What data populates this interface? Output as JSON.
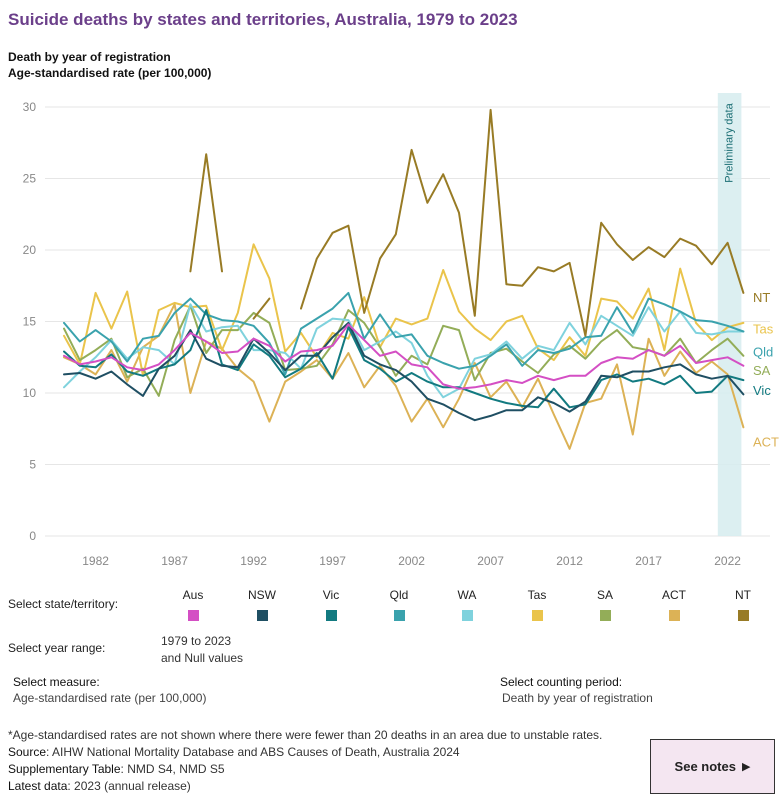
{
  "header": {
    "title": "Suicide deaths by states and territories, Australia, 1979 to 2023",
    "subtitle_1": "Death by year of registration",
    "subtitle_2": "Age-standardised rate (per 100,000)"
  },
  "chart_data": {
    "type": "line",
    "years": [
      1980,
      1981,
      1982,
      1983,
      1984,
      1985,
      1986,
      1987,
      1988,
      1989,
      1990,
      1991,
      1992,
      1993,
      1994,
      1995,
      1996,
      1997,
      1998,
      1999,
      2000,
      2001,
      2002,
      2003,
      2004,
      2005,
      2006,
      2007,
      2008,
      2009,
      2010,
      2011,
      2012,
      2013,
      2014,
      2015,
      2016,
      2017,
      2018,
      2019,
      2020,
      2021,
      2022,
      2023
    ],
    "x_ticks": [
      1982,
      1987,
      1992,
      1997,
      2002,
      2007,
      2012,
      2017,
      2022
    ],
    "y_ticks": [
      0,
      5,
      10,
      15,
      20,
      25,
      30
    ],
    "ylim": [
      0,
      31
    ],
    "annotation": "Preliminary data",
    "preliminary_range": [
      2021,
      2023
    ],
    "series": [
      {
        "name": "Aus",
        "color": "#d44fc4",
        "values": [
          12.6,
          12.0,
          12.2,
          12.5,
          11.8,
          11.6,
          12.0,
          13.0,
          14.2,
          13.6,
          12.8,
          12.9,
          13.8,
          13.3,
          12.2,
          12.9,
          13.0,
          13.3,
          14.8,
          13.7,
          12.6,
          12.9,
          12.0,
          11.8,
          10.6,
          10.3,
          10.4,
          10.6,
          10.9,
          10.7,
          11.2,
          10.9,
          11.2,
          11.2,
          12.1,
          12.5,
          12.4,
          13.0,
          12.6,
          13.3,
          12.1,
          12.3,
          12.5,
          11.9
        ]
      },
      {
        "name": "NSW",
        "color": "#1f4f63",
        "values": [
          11.3,
          11.4,
          11.0,
          11.5,
          10.6,
          9.8,
          11.7,
          12.6,
          14.4,
          12.4,
          11.9,
          11.8,
          13.8,
          12.8,
          11.6,
          12.6,
          12.6,
          13.9,
          14.9,
          12.6,
          12.0,
          11.6,
          10.8,
          9.6,
          9.2,
          8.6,
          8.1,
          8.4,
          8.8,
          8.8,
          9.7,
          9.3,
          8.7,
          9.4,
          11.2,
          11.1,
          11.5,
          11.5,
          11.8,
          12.0,
          11.3,
          11.0,
          11.2,
          9.9
        ]
      },
      {
        "name": "Vic",
        "color": "#127a80",
        "values": [
          12.9,
          11.9,
          11.8,
          12.7,
          11.5,
          11.2,
          11.7,
          12.0,
          13.0,
          15.8,
          12.0,
          11.6,
          13.4,
          12.6,
          11.1,
          11.7,
          12.8,
          11.0,
          14.6,
          12.3,
          11.7,
          10.8,
          11.4,
          10.8,
          10.4,
          10.4,
          10.0,
          9.6,
          9.3,
          9.1,
          9.0,
          10.3,
          9.0,
          9.2,
          10.9,
          11.3,
          10.8,
          11.0,
          10.6,
          11.2,
          10.0,
          10.1,
          11.2,
          10.9
        ]
      },
      {
        "name": "Qld",
        "color": "#3aa2ad",
        "values": [
          14.9,
          13.6,
          14.4,
          13.6,
          12.2,
          13.8,
          14.0,
          15.6,
          16.6,
          15.5,
          15.1,
          15.0,
          14.7,
          13.5,
          11.3,
          14.5,
          15.2,
          15.9,
          17.0,
          13.8,
          15.5,
          13.9,
          14.1,
          12.6,
          12.1,
          11.7,
          11.9,
          12.6,
          13.4,
          11.9,
          13.0,
          12.8,
          13.1,
          13.9,
          14.0,
          16.0,
          14.2,
          16.6,
          16.2,
          15.7,
          15.1,
          15.0,
          14.7,
          14.3
        ]
      },
      {
        "name": "WA",
        "color": "#7fd2dd",
        "values": [
          10.4,
          11.5,
          12.5,
          13.7,
          12.4,
          13.2,
          13.0,
          12.0,
          16.2,
          14.3,
          14.6,
          14.7,
          13.0,
          13.0,
          12.8,
          11.7,
          14.5,
          15.2,
          15.1,
          13.0,
          13.6,
          14.3,
          13.5,
          11.2,
          9.7,
          10.3,
          12.4,
          12.7,
          13.6,
          12.4,
          13.3,
          13.0,
          14.9,
          13.4,
          15.4,
          14.7,
          14.0,
          16.0,
          14.3,
          15.7,
          14.2,
          14.1,
          14.3,
          14.3
        ]
      },
      {
        "name": "Tas",
        "color": "#eac44b",
        "values": [
          14.0,
          12.0,
          17.0,
          14.5,
          17.1,
          11.2,
          15.8,
          16.3,
          16.0,
          16.1,
          13.0,
          15.6,
          20.4,
          18.0,
          12.9,
          14.2,
          12.5,
          14.2,
          13.8,
          16.7,
          13.2,
          15.2,
          14.8,
          15.2,
          18.6,
          15.7,
          14.5,
          13.7,
          15.0,
          15.4,
          13.1,
          12.3,
          13.9,
          12.6,
          16.6,
          16.4,
          15.2,
          17.3,
          13.0,
          18.7,
          14.9,
          13.7,
          14.6,
          14.9
        ]
      },
      {
        "name": "SA",
        "color": "#93ad58",
        "values": [
          14.5,
          12.3,
          13.0,
          13.8,
          11.1,
          11.7,
          9.8,
          13.7,
          16.1,
          12.8,
          14.4,
          14.4,
          15.6,
          14.9,
          11.6,
          11.7,
          11.9,
          13.4,
          15.8,
          14.9,
          13.2,
          11.2,
          12.6,
          12.0,
          14.7,
          14.4,
          10.9,
          12.8,
          13.1,
          12.2,
          11.4,
          12.7,
          13.3,
          12.4,
          13.6,
          14.4,
          13.2,
          13.0,
          12.6,
          13.8,
          12.1,
          13.0,
          13.8,
          12.6
        ]
      },
      {
        "name": "ACT",
        "color": "#dcb256",
        "values": [
          12.5,
          12.0,
          11.3,
          13.0,
          10.8,
          13.2,
          14.0,
          16.2,
          10.0,
          13.6,
          13.1,
          11.7,
          10.8,
          8.0,
          10.8,
          11.5,
          12.3,
          11.0,
          12.8,
          10.4,
          11.9,
          10.5,
          8.0,
          9.6,
          7.6,
          9.6,
          12.1,
          9.7,
          10.8,
          9.0,
          11.0,
          8.5,
          6.1,
          9.3,
          9.6,
          12.0,
          7.1,
          13.8,
          11.2,
          12.9,
          11.4,
          12.2,
          11.3,
          7.6
        ]
      },
      {
        "name": "NT",
        "color": "#987b25",
        "values": [
          null,
          null,
          null,
          null,
          null,
          null,
          null,
          null,
          18.5,
          26.7,
          18.5,
          null,
          15.2,
          16.6,
          null,
          15.9,
          19.4,
          21.2,
          21.7,
          15.6,
          19.4,
          21.1,
          27.0,
          23.3,
          25.3,
          22.6,
          15.4,
          29.8,
          17.6,
          17.5,
          18.8,
          18.5,
          19.1,
          14.0,
          21.9,
          20.4,
          19.3,
          20.2,
          19.5,
          20.8,
          20.3,
          19.0,
          20.5,
          17.0
        ]
      }
    ],
    "end_labels": [
      {
        "name": "NT",
        "y": 16.7
      },
      {
        "name": "Tas",
        "y": 14.5
      },
      {
        "name": "Qld",
        "y": 12.9
      },
      {
        "name": "SA",
        "y": 11.6
      },
      {
        "name": "Vic",
        "y": 10.2
      },
      {
        "name": "ACT",
        "y": 6.6
      }
    ]
  },
  "filters": {
    "state_label": "Select state/territory:",
    "items": [
      {
        "name": "Aus",
        "color": "#d44fc4"
      },
      {
        "name": "NSW",
        "color": "#1f4f63"
      },
      {
        "name": "Vic",
        "color": "#127a80"
      },
      {
        "name": "Qld",
        "color": "#3aa2ad"
      },
      {
        "name": "WA",
        "color": "#7fd2dd"
      },
      {
        "name": "Tas",
        "color": "#eac44b"
      },
      {
        "name": "SA",
        "color": "#93ad58"
      },
      {
        "name": "ACT",
        "color": "#dcb256"
      },
      {
        "name": "NT",
        "color": "#987b25"
      }
    ],
    "year_label": "Select year range:",
    "year_value_1": "1979 to 2023",
    "year_value_2": "and Null values",
    "measure_label": "Select measure:",
    "measure_value": "Age-standardised rate (per 100,000)",
    "period_label": "Select counting period:",
    "period_value": "Death by year of registration"
  },
  "footer": {
    "note": "*Age-standardised rates are not shown where there were fewer than 20 deaths in an area due to unstable rates.",
    "source_key": "Source",
    "source_value": ": AIHW National Mortality Database and ABS Causes of Death, Australia 2024",
    "supp_key": "Supplementary Table",
    "supp_value": ": NMD S4, NMD S5",
    "latest_key": "Latest data",
    "latest_value": ": 2023 (annual release)",
    "notes_button": "See notes",
    "notes_arrow": "▶"
  }
}
